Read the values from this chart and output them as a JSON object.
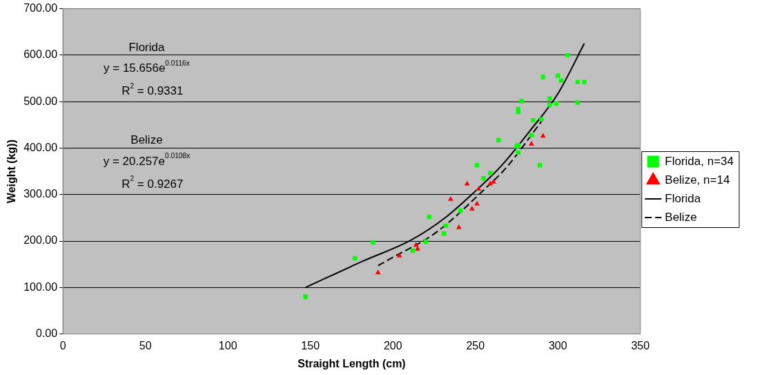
{
  "chart_data": {
    "type": "scatter",
    "xlabel": "Straight Length (cm)",
    "ylabel": "Weight (kg))",
    "xlim": [
      0,
      350
    ],
    "xticks": [
      0,
      50,
      100,
      150,
      200,
      250,
      300,
      350
    ],
    "ylim": [
      0,
      700
    ],
    "yticks": [
      {
        "value": 0,
        "label": "0.00"
      },
      {
        "value": 100,
        "label": "100.00"
      },
      {
        "value": 200,
        "label": "200.00"
      },
      {
        "value": 300,
        "label": "300.00"
      },
      {
        "value": 400,
        "label": "400.00"
      },
      {
        "value": 500,
        "label": "500.00"
      },
      {
        "value": 600,
        "label": "600.00"
      },
      {
        "value": 700,
        "label": "700.00"
      }
    ],
    "grid": "y",
    "legend": "right",
    "annotations": [
      "Florida",
      "y = 15.656e$^{0.0116x}$",
      "R$^{2}$ = 0.9331",
      "Belize",
      "y = 20.257e$^{0.0108x}$",
      "R$^{2}$ = 0.9267"
    ],
    "series": [
      {
        "name": "Florida, n=34",
        "type": "scatter",
        "marker": "square",
        "color": "#00ff00",
        "x": [
          147,
          177,
          188,
          212,
          220,
          222,
          231,
          232,
          241,
          251,
          255,
          259,
          264,
          275,
          276,
          276,
          284,
          289,
          285,
          290,
          276,
          276,
          278,
          291,
          300,
          302,
          295,
          295,
          299,
          312,
          312,
          316,
          306
        ],
        "values": [
          80,
          163,
          197,
          179,
          199,
          252,
          216,
          233,
          265,
          363,
          335,
          346,
          417,
          404,
          390,
          406,
          428,
          363,
          460,
          462,
          478,
          484,
          501,
          553,
          556,
          545,
          507,
          493,
          496,
          498,
          542,
          542,
          600
        ]
      },
      {
        "name": "Belize, n=14",
        "type": "scatter",
        "marker": "triangle",
        "color": "#ff0000",
        "x": [
          191,
          204,
          214,
          215,
          240,
          235,
          248,
          251,
          245,
          252,
          259,
          261,
          284,
          291
        ],
        "values": [
          132,
          168,
          191,
          183,
          229,
          290,
          269,
          280,
          323,
          312,
          323,
          327,
          409,
          426
        ]
      },
      {
        "name": "Florida",
        "type": "line",
        "marker": "none",
        "line_style": "solid",
        "color": "#000000",
        "x": [
          147,
          182,
          211,
          232,
          249,
          266,
          283,
          300,
          316
        ],
        "values": [
          100,
          157,
          202,
          251,
          304,
          363,
          437,
          517,
          625
        ]
      },
      {
        "name": "Belize",
        "type": "line",
        "marker": "none",
        "line_style": "dashed",
        "color": "#000000",
        "x": [
          191,
          199,
          226,
          256,
          269,
          291
        ],
        "values": [
          147,
          163,
          218,
          313,
          359,
          462
        ]
      }
    ]
  }
}
